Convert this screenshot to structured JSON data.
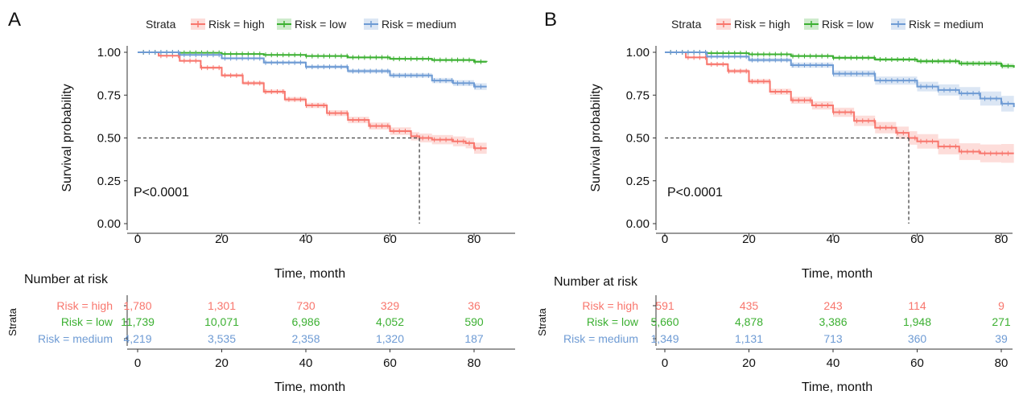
{
  "colors": {
    "high": "#F8766D",
    "low": "#3CB032",
    "medium": "#6E9BD4",
    "axis": "#333333",
    "ref_line": "#444444"
  },
  "chart_data": [
    {
      "panel_label": "A",
      "type": "line",
      "subtype": "kaplan-meier",
      "legend_title": "Strata",
      "legend_position": "top",
      "xlabel": "Time, month",
      "ylabel": "Survival probability",
      "xlim": [
        0,
        83
      ],
      "ylim": [
        0,
        1
      ],
      "x_ticks": [
        0,
        20,
        40,
        60,
        80
      ],
      "y_ticks": [
        "0.00",
        "0.25",
        "0.50",
        "0.75",
        "1.00"
      ],
      "grid": false,
      "pvalue": "P<0.0001",
      "median_survival": {
        "series": "Risk = high",
        "x": 67,
        "y": 0.5
      },
      "series": [
        {
          "name": "Risk = high",
          "key": "high",
          "points": [
            [
              0,
              1.0
            ],
            [
              5,
              0.98
            ],
            [
              10,
              0.95
            ],
            [
              15,
              0.91
            ],
            [
              20,
              0.865
            ],
            [
              25,
              0.82
            ],
            [
              30,
              0.77
            ],
            [
              35,
              0.725
            ],
            [
              40,
              0.69
            ],
            [
              45,
              0.645
            ],
            [
              50,
              0.605
            ],
            [
              55,
              0.57
            ],
            [
              60,
              0.54
            ],
            [
              65,
              0.51
            ],
            [
              67,
              0.5
            ],
            [
              70,
              0.49
            ],
            [
              75,
              0.48
            ],
            [
              78,
              0.47
            ],
            [
              80,
              0.44
            ],
            [
              83,
              0.44
            ]
          ],
          "ci": 0.02
        },
        {
          "name": "Risk = low",
          "key": "low",
          "points": [
            [
              0,
              1.0
            ],
            [
              10,
              0.997
            ],
            [
              20,
              0.99
            ],
            [
              30,
              0.985
            ],
            [
              40,
              0.978
            ],
            [
              50,
              0.97
            ],
            [
              60,
              0.962
            ],
            [
              70,
              0.955
            ],
            [
              80,
              0.945
            ],
            [
              83,
              0.944
            ]
          ],
          "ci": 0.004
        },
        {
          "name": "Risk = medium",
          "key": "medium",
          "points": [
            [
              0,
              1.0
            ],
            [
              10,
              0.985
            ],
            [
              20,
              0.965
            ],
            [
              30,
              0.94
            ],
            [
              40,
              0.915
            ],
            [
              50,
              0.89
            ],
            [
              60,
              0.865
            ],
            [
              70,
              0.835
            ],
            [
              75,
              0.82
            ],
            [
              80,
              0.8
            ],
            [
              83,
              0.8
            ]
          ],
          "ci": 0.012
        }
      ],
      "risk_table": {
        "title": "Number at risk",
        "ylabel": "Strata",
        "xlabel": "Time, month",
        "x_ticks": [
          0,
          20,
          40,
          60,
          80
        ],
        "rows": [
          {
            "label": "Risk = high",
            "key": "high",
            "values": [
              "1,780",
              "1,301",
              "730",
              "329",
              "36"
            ]
          },
          {
            "label": "Risk = low",
            "key": "low",
            "values": [
              "11,739",
              "10,071",
              "6,986",
              "4,052",
              "590"
            ]
          },
          {
            "label": "Risk = medium",
            "key": "medium",
            "values": [
              "4,219",
              "3,535",
              "2,358",
              "1,320",
              "187"
            ]
          }
        ]
      }
    },
    {
      "panel_label": "B",
      "type": "line",
      "subtype": "kaplan-meier",
      "legend_title": "Strata",
      "legend_position": "top",
      "xlabel": "Time, month",
      "ylabel": "Survival probability",
      "xlim": [
        0,
        83
      ],
      "ylim": [
        0,
        1
      ],
      "x_ticks": [
        0,
        20,
        40,
        60,
        80
      ],
      "y_ticks": [
        "0.00",
        "0.25",
        "0.50",
        "0.75",
        "1.00"
      ],
      "grid": false,
      "pvalue": "P<0.0001",
      "median_survival": {
        "series": "Risk = high",
        "x": 58,
        "y": 0.5
      },
      "series": [
        {
          "name": "Risk = high",
          "key": "high",
          "points": [
            [
              0,
              1.0
            ],
            [
              5,
              0.97
            ],
            [
              10,
              0.93
            ],
            [
              15,
              0.89
            ],
            [
              20,
              0.83
            ],
            [
              25,
              0.77
            ],
            [
              30,
              0.72
            ],
            [
              35,
              0.69
            ],
            [
              40,
              0.65
            ],
            [
              45,
              0.6
            ],
            [
              50,
              0.56
            ],
            [
              55,
              0.53
            ],
            [
              58,
              0.5
            ],
            [
              60,
              0.48
            ],
            [
              65,
              0.45
            ],
            [
              70,
              0.42
            ],
            [
              75,
              0.41
            ],
            [
              80,
              0.41
            ],
            [
              83,
              0.41
            ]
          ],
          "ci": 0.035
        },
        {
          "name": "Risk = low",
          "key": "low",
          "points": [
            [
              0,
              1.0
            ],
            [
              10,
              0.995
            ],
            [
              20,
              0.988
            ],
            [
              30,
              0.978
            ],
            [
              40,
              0.968
            ],
            [
              50,
              0.958
            ],
            [
              60,
              0.948
            ],
            [
              70,
              0.935
            ],
            [
              80,
              0.92
            ],
            [
              83,
              0.91
            ]
          ],
          "ci": 0.008
        },
        {
          "name": "Risk = medium",
          "key": "medium",
          "points": [
            [
              0,
              1.0
            ],
            [
              10,
              0.975
            ],
            [
              20,
              0.955
            ],
            [
              30,
              0.925
            ],
            [
              40,
              0.875
            ],
            [
              50,
              0.835
            ],
            [
              60,
              0.8
            ],
            [
              65,
              0.78
            ],
            [
              70,
              0.76
            ],
            [
              75,
              0.73
            ],
            [
              80,
              0.7
            ],
            [
              83,
              0.68
            ]
          ],
          "ci": 0.03
        }
      ],
      "risk_table": {
        "title": "Number at risk",
        "ylabel": "Strata",
        "xlabel": "Time, month",
        "x_ticks": [
          0,
          20,
          40,
          60,
          80
        ],
        "rows": [
          {
            "label": "Risk = high",
            "key": "high",
            "values": [
              "591",
              "435",
              "243",
              "114",
              "9"
            ]
          },
          {
            "label": "Risk = low",
            "key": "low",
            "values": [
              "5,660",
              "4,878",
              "3,386",
              "1,948",
              "271"
            ]
          },
          {
            "label": "Risk = medium",
            "key": "medium",
            "values": [
              "1,349",
              "1,131",
              "713",
              "360",
              "39"
            ]
          }
        ]
      }
    }
  ]
}
